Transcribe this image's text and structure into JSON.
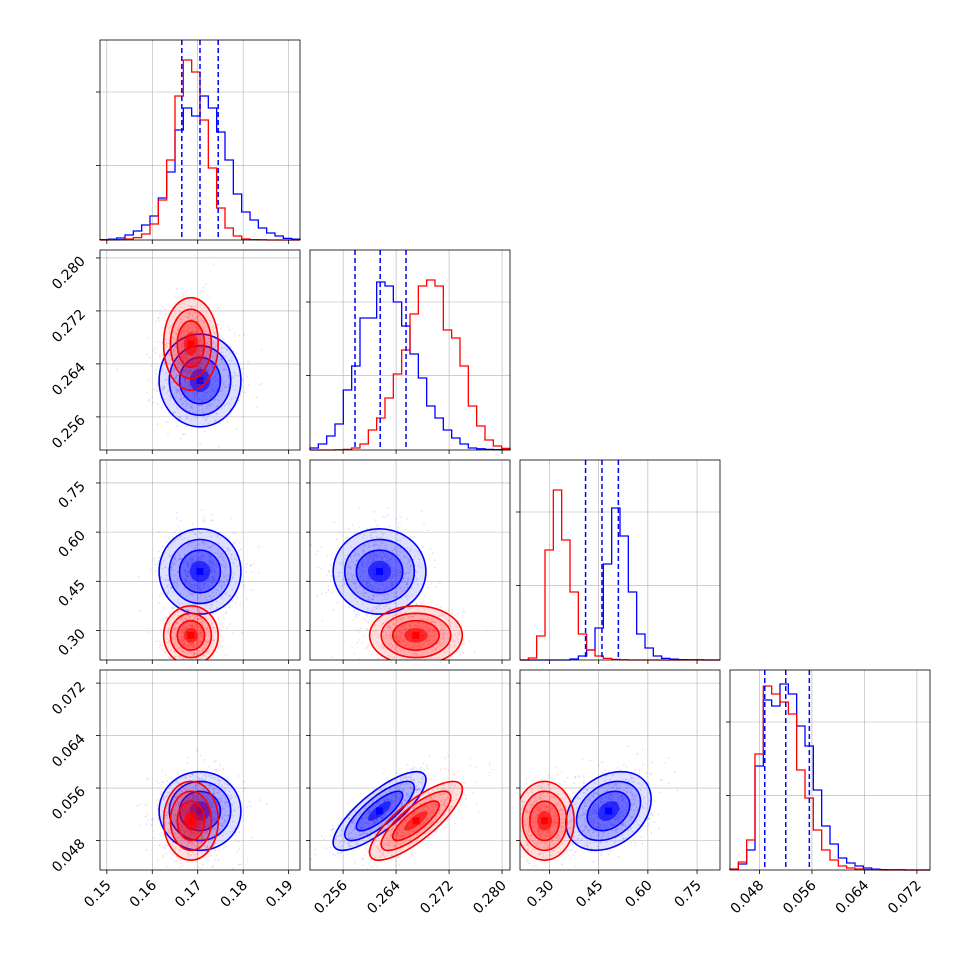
{
  "chart_data": {
    "type": "corner",
    "parameters": [
      {
        "ticks": [
          0.15,
          0.16,
          0.17,
          0.18,
          0.19
        ],
        "tick_labels": [
          "0.15",
          "0.16",
          "0.17",
          "0.18",
          "0.19"
        ],
        "range": [
          0.1485,
          0.1925
        ]
      },
      {
        "ticks": [
          0.256,
          0.264,
          0.272,
          0.28
        ],
        "tick_labels": [
          "0.256",
          "0.264",
          "0.272",
          "0.280"
        ],
        "range": [
          0.251,
          0.2812
        ]
      },
      {
        "ticks": [
          0.3,
          0.45,
          0.6,
          0.75
        ],
        "tick_labels": [
          "0.30",
          "0.45",
          "0.60",
          "0.75"
        ],
        "range": [
          0.21,
          0.82
        ]
      },
      {
        "ticks": [
          0.048,
          0.056,
          0.064,
          0.072
        ],
        "tick_labels": [
          "0.048",
          "0.056",
          "0.064",
          "0.072"
        ],
        "range": [
          0.0435,
          0.074
        ]
      }
    ],
    "series": [
      {
        "color": "#0000ff",
        "means": [
          0.1705,
          0.2615,
          0.48,
          0.0525
        ],
        "sds": [
          0.0045,
          0.0035,
          0.065,
          0.003
        ],
        "quantiles": [
          [
            0.1665,
            0.1705,
            0.1745
          ],
          [
            0.2578,
            0.2616,
            0.2655
          ],
          [
            0.41,
            0.46,
            0.51
          ],
          [
            0.0488,
            0.052,
            0.0556
          ]
        ],
        "correlations": [
          [
            1,
            0,
            0,
            0
          ],
          [
            0,
            1,
            0,
            0.8
          ],
          [
            0,
            0,
            1,
            0.3
          ],
          [
            0,
            0.8,
            0.3,
            1
          ]
        ]
      },
      {
        "color": "#ff0000",
        "means": [
          0.1685,
          0.267,
          0.285,
          0.051
        ],
        "sds": [
          0.003,
          0.0035,
          0.045,
          0.003
        ],
        "quantiles": [],
        "correlations": [
          [
            1,
            0,
            0,
            0
          ],
          [
            0,
            1,
            0,
            0.8
          ],
          [
            0,
            0,
            1,
            0
          ],
          [
            0,
            0.8,
            0,
            1
          ]
        ]
      }
    ],
    "histograms": {
      "blue": [
        [
          0.002,
          0.004,
          0.01,
          0.025,
          0.045,
          0.075,
          0.12,
          0.21,
          0.34,
          0.55,
          0.66,
          0.62,
          0.72,
          0.66,
          0.54,
          0.4,
          0.23,
          0.14,
          0.1,
          0.06,
          0.035,
          0.02,
          0.008,
          0.004
        ],
        [
          0.01,
          0.03,
          0.07,
          0.13,
          0.3,
          0.42,
          0.66,
          0.66,
          0.84,
          0.82,
          0.74,
          0.62,
          0.48,
          0.36,
          0.22,
          0.16,
          0.1,
          0.06,
          0.03,
          0.01,
          0.006,
          0.003,
          0.002,
          0.001
        ],
        [
          0,
          0,
          0,
          0,
          0,
          0,
          0.005,
          0.02,
          0.05,
          0.16,
          0.48,
          0.76,
          0.62,
          0.34,
          0.13,
          0.06,
          0.02,
          0.008,
          0.004,
          0.002,
          0.001,
          0.001,
          0,
          0
        ],
        [
          0.003,
          0.03,
          0.1,
          0.52,
          0.85,
          0.82,
          0.93,
          0.88,
          0.72,
          0.62,
          0.4,
          0.22,
          0.13,
          0.06,
          0.035,
          0.02,
          0.01,
          0.004,
          0.002,
          0.001,
          0.001,
          0,
          0,
          0
        ]
      ],
      "red": [
        [
          0,
          0.001,
          0.002,
          0.005,
          0.012,
          0.03,
          0.08,
          0.2,
          0.4,
          0.72,
          0.9,
          0.84,
          0.6,
          0.36,
          0.16,
          0.06,
          0.02,
          0.005,
          0.002,
          0.001,
          0,
          0,
          0,
          0
        ],
        [
          0,
          0,
          0,
          0.001,
          0.003,
          0.01,
          0.03,
          0.1,
          0.16,
          0.26,
          0.38,
          0.5,
          0.68,
          0.82,
          0.85,
          0.82,
          0.6,
          0.56,
          0.42,
          0.22,
          0.12,
          0.05,
          0.02,
          0.008
        ],
        [
          0,
          0.01,
          0.12,
          0.55,
          0.85,
          0.6,
          0.34,
          0.13,
          0.05,
          0.02,
          0.008,
          0.003,
          0.001,
          0,
          0,
          0,
          0,
          0,
          0,
          0,
          0,
          0,
          0,
          0
        ],
        [
          0.005,
          0.04,
          0.15,
          0.58,
          0.92,
          0.88,
          0.84,
          0.78,
          0.5,
          0.36,
          0.2,
          0.1,
          0.05,
          0.02,
          0.01,
          0.005,
          0.002,
          0.001,
          0,
          0,
          0,
          0,
          0,
          0
        ]
      ]
    },
    "grid": true
  }
}
